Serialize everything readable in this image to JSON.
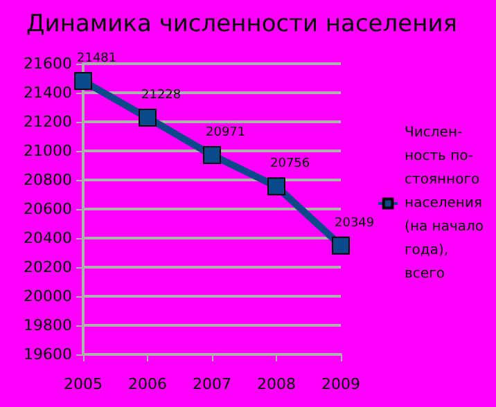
{
  "chart_data": {
    "type": "line",
    "title": "Динамика численности населения",
    "categories": [
      "2005",
      "2006",
      "2007",
      "2008",
      "2009"
    ],
    "series": [
      {
        "name": "Числен- ность по- стоянного населения (на начало года), всего",
        "color": "#0b4a8a",
        "values": [
          21481,
          21228,
          20971,
          20756,
          20349
        ]
      }
    ],
    "ylim": [
      19600,
      21600
    ],
    "yticks": [
      19600,
      19800,
      20000,
      20200,
      20400,
      20600,
      20800,
      21000,
      21200,
      21400,
      21600
    ],
    "grid": "y",
    "legend": "right",
    "marker": "square",
    "data_labels": true
  }
}
